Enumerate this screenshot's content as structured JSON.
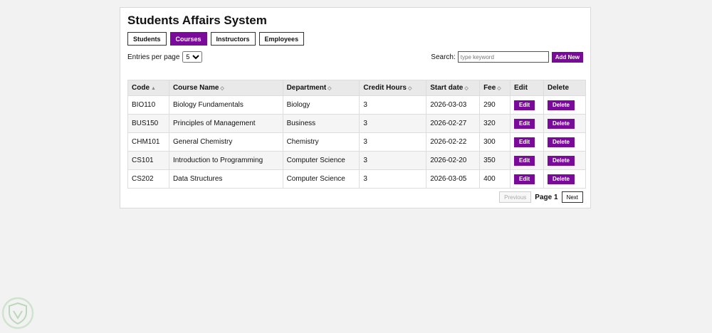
{
  "app": {
    "title": "Students Affairs System"
  },
  "tabs": [
    {
      "label": "Students",
      "active": false
    },
    {
      "label": "Courses",
      "active": true
    },
    {
      "label": "Instructors",
      "active": false
    },
    {
      "label": "Employees",
      "active": false
    }
  ],
  "entries": {
    "label": "Entries per page",
    "selected": "5"
  },
  "search": {
    "label": "Search:",
    "placeholder": "type keyword",
    "value": ""
  },
  "add_new_label": "Add New",
  "table": {
    "columns": [
      {
        "label": "Code",
        "sort": "▲"
      },
      {
        "label": "Course Name",
        "sort": "◇"
      },
      {
        "label": "Department",
        "sort": "◇"
      },
      {
        "label": "Credit Hours",
        "sort": "◇"
      },
      {
        "label": "Start date",
        "sort": "◇"
      },
      {
        "label": "Fee",
        "sort": "◇"
      },
      {
        "label": "Edit",
        "sort": ""
      },
      {
        "label": "Delete",
        "sort": ""
      }
    ],
    "rows": [
      {
        "code": "BIO110",
        "name": "Biology Fundamentals",
        "department": "Biology",
        "credit_hours": "3",
        "start_date": "2026-03-03",
        "fee": "290",
        "edit_label": "Edit",
        "delete_label": "Delete"
      },
      {
        "code": "BUS150",
        "name": "Principles of Management",
        "department": "Business",
        "credit_hours": "3",
        "start_date": "2026-02-27",
        "fee": "320",
        "edit_label": "Edit",
        "delete_label": "Delete"
      },
      {
        "code": "CHM101",
        "name": "General Chemistry",
        "department": "Chemistry",
        "credit_hours": "3",
        "start_date": "2026-02-22",
        "fee": "300",
        "edit_label": "Edit",
        "delete_label": "Delete"
      },
      {
        "code": "CS101",
        "name": "Introduction to Programming",
        "department": "Computer Science",
        "credit_hours": "3",
        "start_date": "2026-02-20",
        "fee": "350",
        "edit_label": "Edit",
        "delete_label": "Delete"
      },
      {
        "code": "CS202",
        "name": "Data Structures",
        "department": "Computer Science",
        "credit_hours": "3",
        "start_date": "2026-03-05",
        "fee": "400",
        "edit_label": "Edit",
        "delete_label": "Delete"
      }
    ]
  },
  "pagination": {
    "previous_label": "Previous",
    "page_label": "Page 1",
    "next_label": "Next"
  },
  "colors": {
    "accent": "#7a0b9a",
    "page_bg": "#f2f2f2",
    "header_bg": "#e9e9e9"
  },
  "icons": {
    "watermark": "shield-logo-icon"
  }
}
